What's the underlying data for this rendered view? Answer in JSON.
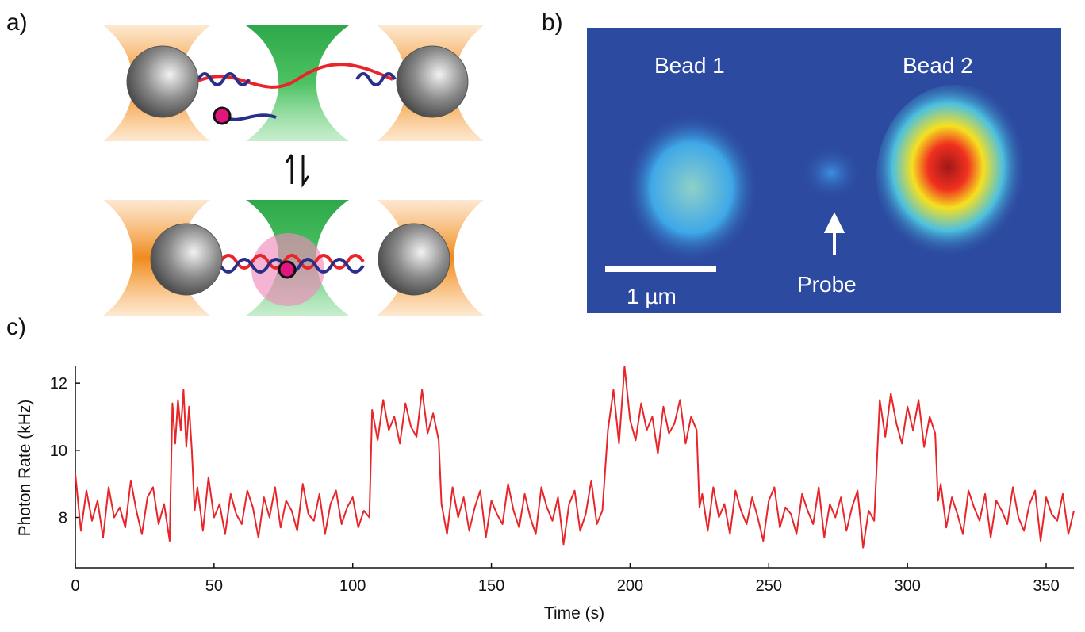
{
  "panels": {
    "a": {
      "label": "a)"
    },
    "b": {
      "label": "b)",
      "bead1": "Bead 1",
      "bead2": "Bead 2",
      "probe": "Probe",
      "scale_bar": "1 µm"
    },
    "c": {
      "label": "c)"
    }
  },
  "chart_data": {
    "type": "line",
    "xlabel": "Time (s)",
    "ylabel": "Photon Rate (kHz)",
    "color": "#e8262a",
    "xlim": [
      0,
      360
    ],
    "ylim": [
      6.5,
      12.5
    ],
    "xticks": [
      0,
      50,
      100,
      150,
      200,
      250,
      300,
      350
    ],
    "yticks": [
      8,
      10,
      12
    ],
    "x": [
      0,
      2,
      4,
      6,
      8,
      10,
      12,
      14,
      16,
      18,
      20,
      22,
      24,
      26,
      28,
      30,
      32,
      34,
      35,
      36,
      37,
      38,
      39,
      40,
      41,
      42,
      43,
      44,
      46,
      48,
      50,
      52,
      54,
      56,
      58,
      60,
      62,
      64,
      66,
      68,
      70,
      72,
      74,
      76,
      78,
      80,
      82,
      84,
      86,
      88,
      90,
      92,
      94,
      96,
      98,
      100,
      102,
      104,
      106,
      107,
      109,
      111,
      113,
      115,
      117,
      119,
      121,
      123,
      125,
      127,
      129,
      131,
      132,
      134,
      136,
      138,
      140,
      142,
      144,
      146,
      148,
      150,
      152,
      154,
      156,
      158,
      160,
      162,
      164,
      166,
      168,
      170,
      172,
      174,
      176,
      178,
      180,
      182,
      184,
      186,
      188,
      190,
      192,
      194,
      196,
      198,
      200,
      202,
      204,
      206,
      208,
      210,
      212,
      214,
      216,
      218,
      220,
      222,
      224,
      225,
      226,
      228,
      230,
      232,
      234,
      236,
      238,
      240,
      242,
      244,
      246,
      248,
      250,
      252,
      254,
      256,
      258,
      260,
      262,
      264,
      266,
      268,
      270,
      272,
      274,
      276,
      278,
      280,
      282,
      284,
      286,
      288,
      290,
      292,
      294,
      296,
      298,
      300,
      302,
      304,
      306,
      308,
      310,
      311,
      312,
      314,
      316,
      318,
      320,
      322,
      324,
      326,
      328,
      330,
      332,
      334,
      336,
      338,
      340,
      342,
      344,
      346,
      348,
      350,
      352,
      354,
      356,
      358,
      360
    ],
    "values": [
      9.3,
      7.6,
      8.8,
      7.9,
      8.5,
      7.4,
      8.9,
      8.0,
      8.3,
      7.7,
      9.1,
      8.2,
      7.5,
      8.6,
      8.9,
      7.8,
      8.4,
      7.3,
      11.4,
      10.2,
      11.5,
      10.6,
      11.8,
      10.1,
      11.3,
      10.0,
      8.2,
      8.9,
      7.6,
      9.2,
      8.0,
      8.4,
      7.5,
      8.7,
      8.1,
      7.8,
      8.8,
      8.3,
      7.4,
      8.6,
      8.0,
      8.9,
      7.7,
      8.5,
      8.2,
      7.6,
      9.0,
      8.1,
      7.9,
      8.7,
      7.5,
      8.4,
      8.8,
      7.8,
      8.3,
      8.6,
      7.7,
      8.2,
      8.0,
      11.2,
      10.3,
      11.5,
      10.6,
      11.0,
      10.2,
      11.4,
      10.7,
      10.4,
      11.8,
      10.5,
      11.1,
      10.3,
      8.4,
      7.5,
      8.9,
      8.0,
      8.6,
      7.6,
      8.3,
      8.8,
      7.4,
      8.5,
      8.1,
      7.8,
      9.0,
      8.2,
      7.7,
      8.7,
      8.0,
      7.5,
      8.9,
      8.3,
      7.9,
      8.6,
      7.2,
      8.4,
      8.8,
      7.6,
      8.1,
      9.1,
      7.8,
      8.2,
      10.6,
      11.8,
      10.2,
      12.5,
      10.9,
      10.3,
      11.4,
      10.6,
      11.0,
      9.9,
      11.3,
      10.5,
      10.8,
      11.5,
      10.2,
      11.0,
      10.6,
      8.3,
      8.7,
      7.6,
      8.9,
      8.0,
      8.4,
      7.5,
      8.8,
      8.2,
      7.8,
      8.6,
      8.0,
      7.3,
      8.5,
      8.9,
      7.7,
      8.3,
      8.1,
      7.5,
      8.7,
      8.2,
      7.8,
      8.9,
      7.4,
      8.4,
      8.0,
      8.6,
      7.6,
      8.3,
      8.8,
      7.1,
      8.2,
      7.9,
      11.5,
      10.4,
      11.7,
      10.8,
      10.2,
      11.3,
      10.6,
      11.5,
      10.1,
      11.0,
      10.5,
      8.5,
      9.0,
      7.7,
      8.6,
      8.1,
      7.5,
      8.8,
      8.3,
      7.9,
      8.7,
      7.4,
      8.5,
      8.2,
      7.8,
      8.9,
      8.0,
      7.6,
      8.4,
      8.8,
      7.3,
      8.6,
      8.1,
      7.9,
      8.7,
      7.5,
      8.2
    ]
  }
}
